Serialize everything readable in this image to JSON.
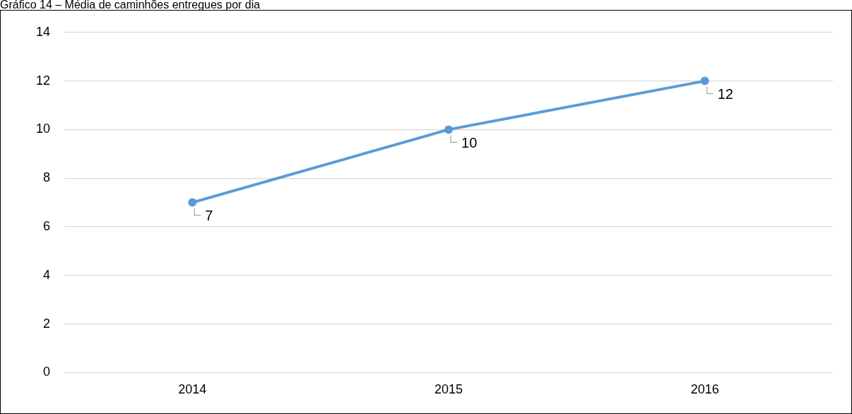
{
  "chart_data": {
    "type": "line",
    "title": "Gráfico 14 – Média de caminhões entregues por dia",
    "categories": [
      "2014",
      "2015",
      "2016"
    ],
    "series": [
      {
        "color": "#5b9bd5",
        "values": [
          7,
          10,
          12
        ]
      }
    ],
    "ylim": [
      0,
      14
    ],
    "yticks": [
      0,
      2,
      4,
      6,
      8,
      10,
      12,
      14
    ],
    "grid": "y",
    "legend": false,
    "marker": "circle",
    "line_style": "solid",
    "data_labels": true
  }
}
